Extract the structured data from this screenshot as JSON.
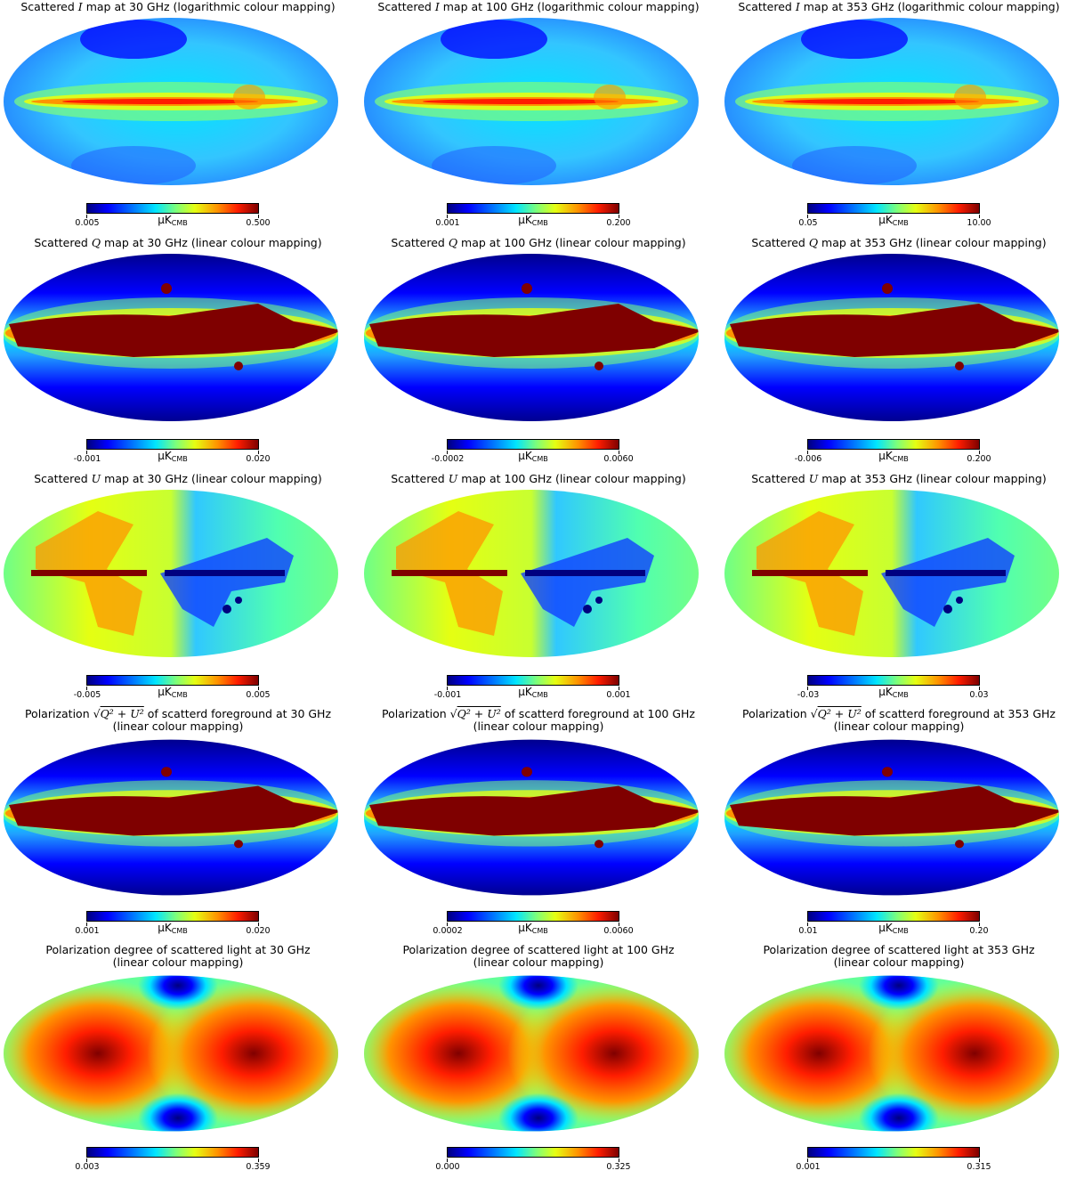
{
  "unit": {
    "mu": "μK",
    "sub": "CMB"
  },
  "rows": [
    {
      "kind": "I",
      "panels": [
        {
          "prefix": "Scattered ",
          "sym": "I",
          "suffix": " map at 30 GHz (logarithmic colour mapping)",
          "cmin": "0.005",
          "cmax": "0.500",
          "showUnit": true
        },
        {
          "prefix": "Scattered ",
          "sym": "I",
          "suffix": " map at 100 GHz (logarithmic colour mapping)",
          "cmin": "0.001",
          "cmax": "0.200",
          "showUnit": true
        },
        {
          "prefix": "Scattered ",
          "sym": "I",
          "suffix": " map at 353 GHz (logarithmic colour mapping)",
          "cmin": "0.05",
          "cmax": "10.00",
          "showUnit": true
        }
      ]
    },
    {
      "kind": "Q",
      "panels": [
        {
          "prefix": "Scattered ",
          "sym": "Q",
          "suffix": " map at 30 GHz (linear colour mapping)",
          "cmin": "-0.001",
          "cmax": "0.020",
          "showUnit": true
        },
        {
          "prefix": "Scattered ",
          "sym": "Q",
          "suffix": " map at 100 GHz (linear colour mapping)",
          "cmin": "-0.0002",
          "cmax": "0.0060",
          "showUnit": true
        },
        {
          "prefix": "Scattered ",
          "sym": "Q",
          "suffix": " map at 353 GHz (linear colour mapping)",
          "cmin": "-0.006",
          "cmax": "0.200",
          "showUnit": true
        }
      ]
    },
    {
      "kind": "U",
      "panels": [
        {
          "prefix": "Scattered ",
          "sym": "U",
          "suffix": " map at 30 GHz (linear colour mapping)",
          "cmin": "-0.005",
          "cmax": "0.005",
          "showUnit": true
        },
        {
          "prefix": "Scattered ",
          "sym": "U",
          "suffix": " map at 100 GHz (linear colour mapping)",
          "cmin": "-0.001",
          "cmax": "0.001",
          "showUnit": true
        },
        {
          "prefix": "Scattered ",
          "sym": "U",
          "suffix": " map at 353 GHz (linear colour mapping)",
          "cmin": "-0.03",
          "cmax": "0.03",
          "showUnit": true
        }
      ]
    },
    {
      "kind": "P",
      "panels": [
        {
          "prefix": "Polarization ",
          "sqrt": "Q² + U²",
          "suffix": " of scatterd foreground at 30 GHz",
          "line2": "(linear colour mapping)",
          "cmin": "0.001",
          "cmax": "0.020",
          "showUnit": true
        },
        {
          "prefix": "Polarization ",
          "sqrt": "Q² + U²",
          "suffix": " of scatterd foreground at 100 GHz",
          "line2": "(linear colour mapping)",
          "cmin": "0.0002",
          "cmax": "0.0060",
          "showUnit": true
        },
        {
          "prefix": "Polarization ",
          "sqrt": "Q² + U²",
          "suffix": " of scatterd foreground at 353 GHz",
          "line2": "(linear colour mapping)",
          "cmin": "0.01",
          "cmax": "0.20",
          "showUnit": true
        }
      ]
    },
    {
      "kind": "D",
      "panels": [
        {
          "prefix": "Polarization degree of scattered light at 30 GHz",
          "line2": "(linear colour mapping)",
          "cmin": "0.003",
          "cmax": "0.359",
          "showUnit": false
        },
        {
          "prefix": "Polarization degree of scattered light at 100 GHz",
          "line2": "(linear colour mapping)",
          "cmin": "0.000",
          "cmax": "0.325",
          "showUnit": false
        },
        {
          "prefix": "Polarization degree of scattered light at 353 GHz",
          "line2": "(linear colour mapping)",
          "cmin": "0.001",
          "cmax": "0.315",
          "showUnit": false
        }
      ]
    }
  ],
  "colors": {
    "jet_darkblue": "#00007f",
    "jet_blue": "#0000ff",
    "jet_cyan": "#00e5ff",
    "jet_green": "#7dff7a",
    "jet_yellow": "#e5ff12",
    "jet_orange": "#ff9400",
    "jet_red": "#ff1d00",
    "jet_darkred": "#7f0000"
  }
}
